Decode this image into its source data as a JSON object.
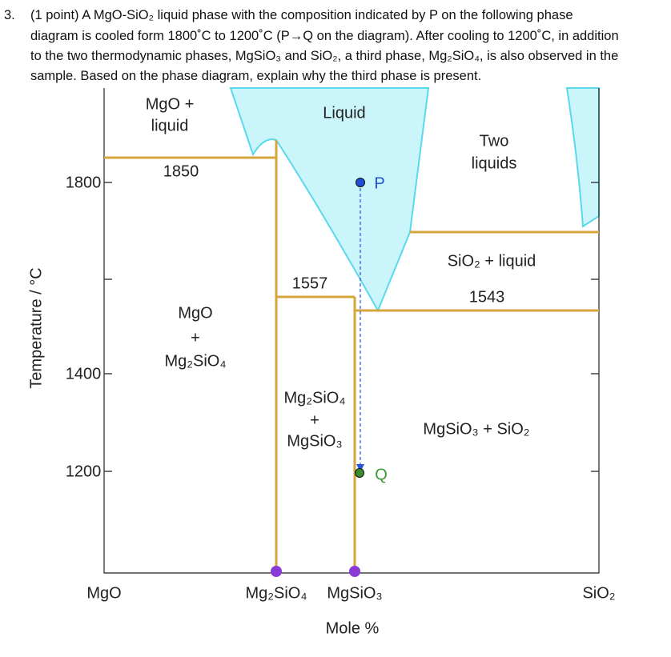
{
  "question": {
    "number": "3.",
    "lines": [
      "(1 point) A MgO-SiO₂ liquid phase with the composition indicated by P on the following phase",
      "diagram is cooled form 1800˚C to 1200˚C (P→Q on the diagram). After cooling to 1200˚C, in addition",
      "to the two thermodynamic phases, MgSiO₃ and SiO₂, a third phase, Mg₂SiO₄, is also observed in the",
      "sample. Based on the phase diagram, explain why the third phase is present."
    ]
  },
  "diagram": {
    "y_axis_label": "Temperature / °C",
    "x_axis_label": "Mole %",
    "y_ticks": [
      "1800",
      "1400",
      "1200"
    ],
    "x_labels": [
      "MgO",
      "Mg₂SiO₄",
      "MgSiO₃",
      "SiO₂"
    ],
    "regions": [
      "MgO +",
      "liquid",
      "Liquid",
      "Two",
      "liquids",
      "SiO₂ + liquid",
      "MgO",
      "+",
      "Mg₂SiO₄",
      "Mg₂SiO₄",
      "+",
      "MgSiO₃",
      "MgSiO₃ + SiO₂"
    ],
    "temperatures": [
      "1850",
      "1557",
      "1543"
    ],
    "points": [
      "P",
      "Q"
    ]
  }
}
